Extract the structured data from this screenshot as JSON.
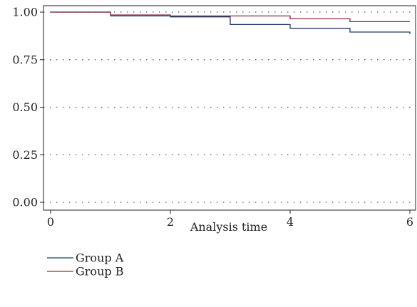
{
  "chart_data": {
    "type": "line",
    "line_shape": "step",
    "title": "",
    "xlabel": "Analysis time",
    "ylabel": "",
    "xlim": [
      0,
      6
    ],
    "ylim": [
      0,
      1
    ],
    "x_ticks": [
      0,
      2,
      4,
      6
    ],
    "x_tick_labels": [
      "0",
      "2",
      "4",
      "6"
    ],
    "y_ticks": [
      0,
      0.25,
      0.5,
      0.75,
      1
    ],
    "y_tick_labels": [
      "0.00",
      "0.25",
      "0.50",
      "0.75",
      "1.00"
    ],
    "grid": "horizontal dotted",
    "legend_position": "bottom-left",
    "series": [
      {
        "name": "Group A",
        "color": "#1f3d6b",
        "x": [
          0,
          1,
          2,
          3,
          4,
          5,
          6
        ],
        "y": [
          1.0,
          0.98,
          0.975,
          0.935,
          0.915,
          0.895,
          0.885
        ]
      },
      {
        "name": "Group B",
        "color": "#8b2a3c",
        "x": [
          0,
          1,
          2,
          3,
          4,
          5,
          6
        ],
        "y": [
          1.0,
          0.985,
          0.98,
          0.98,
          0.965,
          0.95,
          0.95
        ]
      }
    ]
  }
}
